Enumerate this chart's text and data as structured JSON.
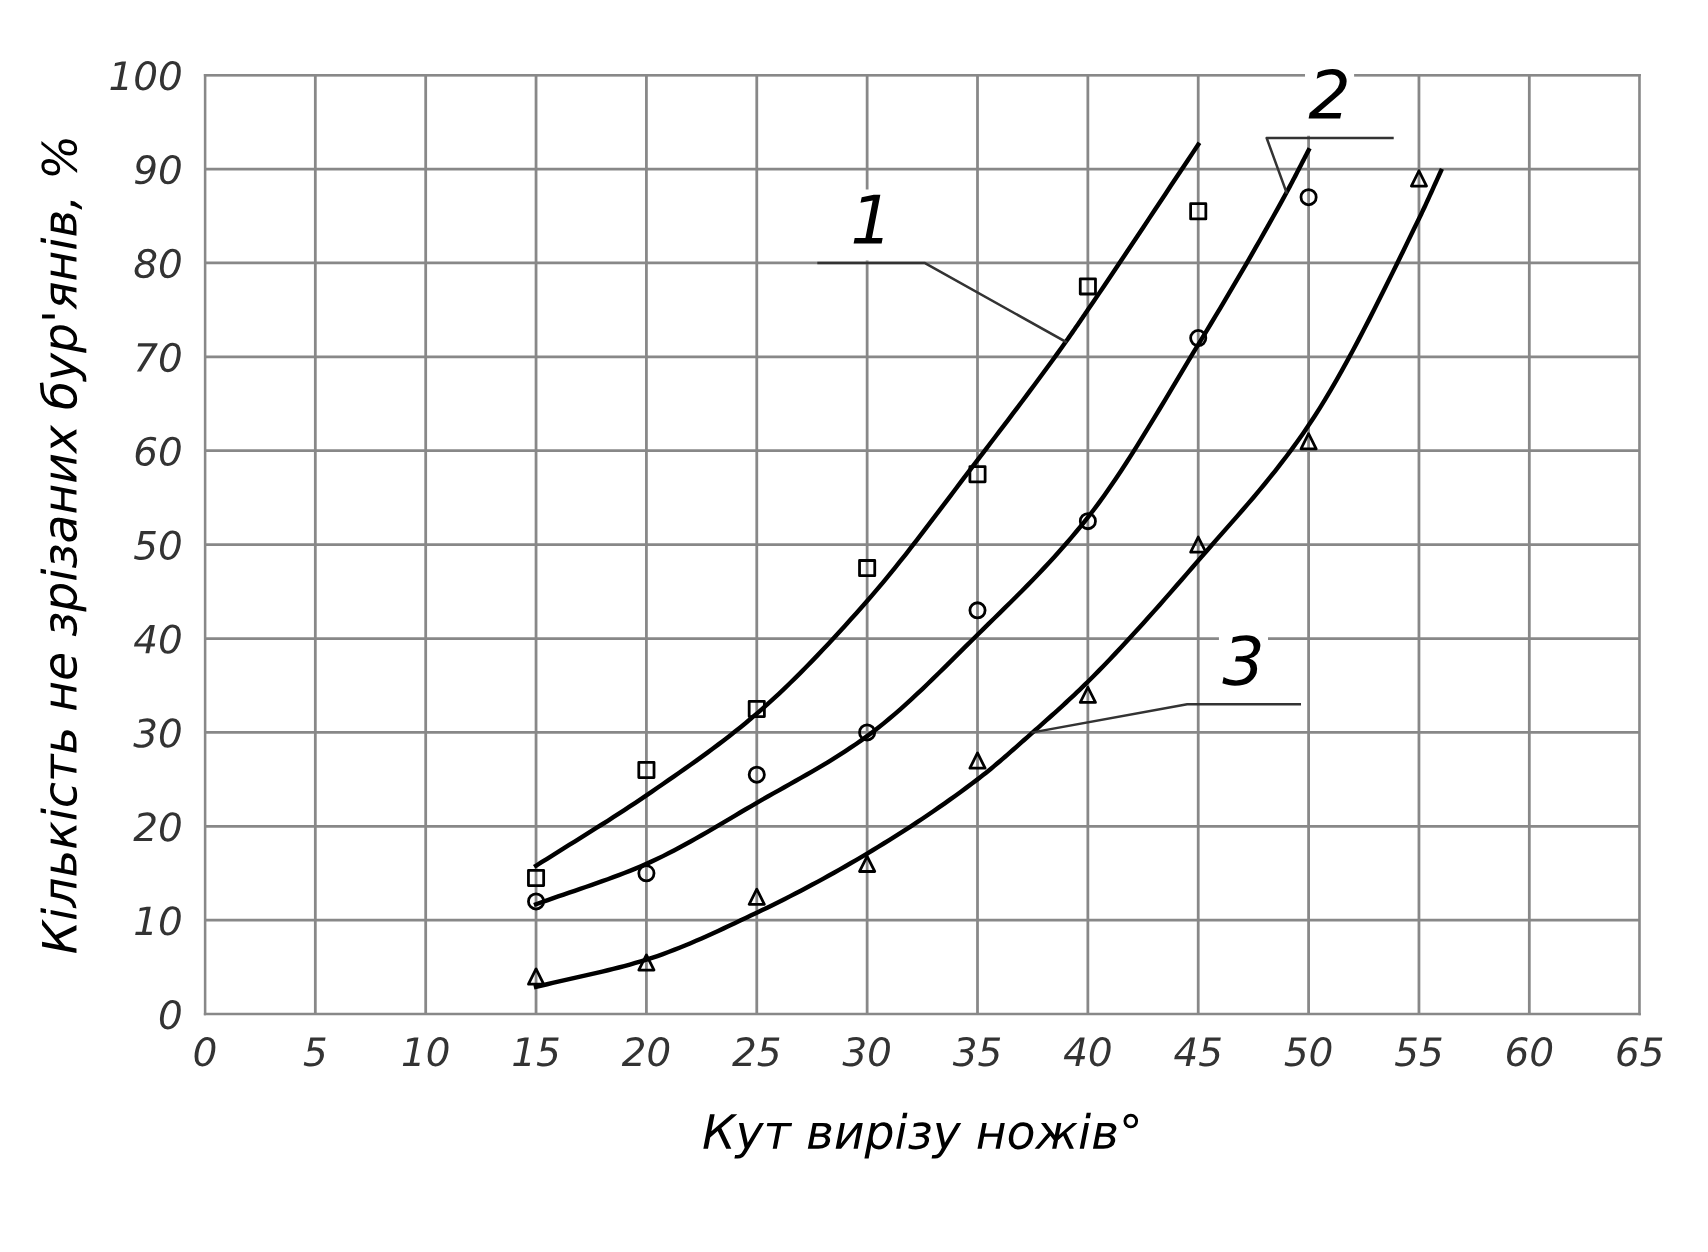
{
  "chart_data": {
    "type": "scatter",
    "xlabel": "Кут вирізу ножів°",
    "ylabel": "Кількість не зрізаних бур'янів, %",
    "xlim": [
      0,
      65
    ],
    "xticks": [
      0,
      5,
      10,
      15,
      20,
      25,
      30,
      35,
      40,
      45,
      50,
      55,
      60,
      65
    ],
    "ylim": [
      0,
      100
    ],
    "yticks": [
      0,
      10,
      20,
      30,
      40,
      50,
      60,
      70,
      80,
      90,
      100
    ],
    "grid": true,
    "legend": false,
    "series": [
      {
        "marker": "square",
        "color": "#000000",
        "x": [
          15,
          20,
          25,
          30,
          35,
          40,
          45
        ],
        "values": [
          14.5,
          26,
          32.5,
          47.5,
          57.5,
          77.5,
          85.5
        ]
      },
      {
        "marker": "circle",
        "color": "#000000",
        "x": [
          15,
          20,
          25,
          30,
          35,
          40,
          45,
          50
        ],
        "values": [
          12,
          15,
          25.5,
          30,
          43,
          52.5,
          72,
          87
        ]
      },
      {
        "marker": "triangle",
        "color": "#000000",
        "x": [
          15,
          20,
          25,
          30,
          35,
          40,
          45,
          50,
          55
        ],
        "values": [
          4,
          5.5,
          12.5,
          16,
          27,
          34,
          50,
          61,
          89
        ]
      },
      {
        "type": "line",
        "marker": "none",
        "line_style": "solid",
        "color": "#000000",
        "x": [
          15,
          20,
          25,
          30,
          35,
          39,
          40,
          45
        ],
        "values": [
          15.8,
          23.3,
          32,
          44,
          59,
          71.6,
          75,
          92.6
        ]
      },
      {
        "type": "line",
        "marker": "none",
        "line_style": "solid",
        "color": "#000000",
        "x": [
          15,
          20,
          25,
          30,
          35,
          40,
          45,
          49,
          50
        ],
        "values": [
          11.7,
          16,
          22.5,
          29.6,
          40.4,
          52.9,
          71.3,
          87.5,
          92
        ]
      },
      {
        "type": "line",
        "marker": "none",
        "line_style": "solid",
        "color": "#000000",
        "x": [
          15,
          20,
          25,
          30,
          35,
          37.5,
          40,
          45,
          50,
          55,
          56
        ],
        "values": [
          2.9,
          5.8,
          10.8,
          17.1,
          25,
          30,
          35.4,
          48.3,
          62.7,
          84.7,
          89.8
        ]
      }
    ],
    "annotations": [
      {
        "text": "1",
        "x": 39,
        "y": 71.6
      },
      {
        "text": "2",
        "x": 49,
        "y": 87.5
      },
      {
        "text": "3",
        "x": 37.5,
        "y": 30
      }
    ]
  }
}
